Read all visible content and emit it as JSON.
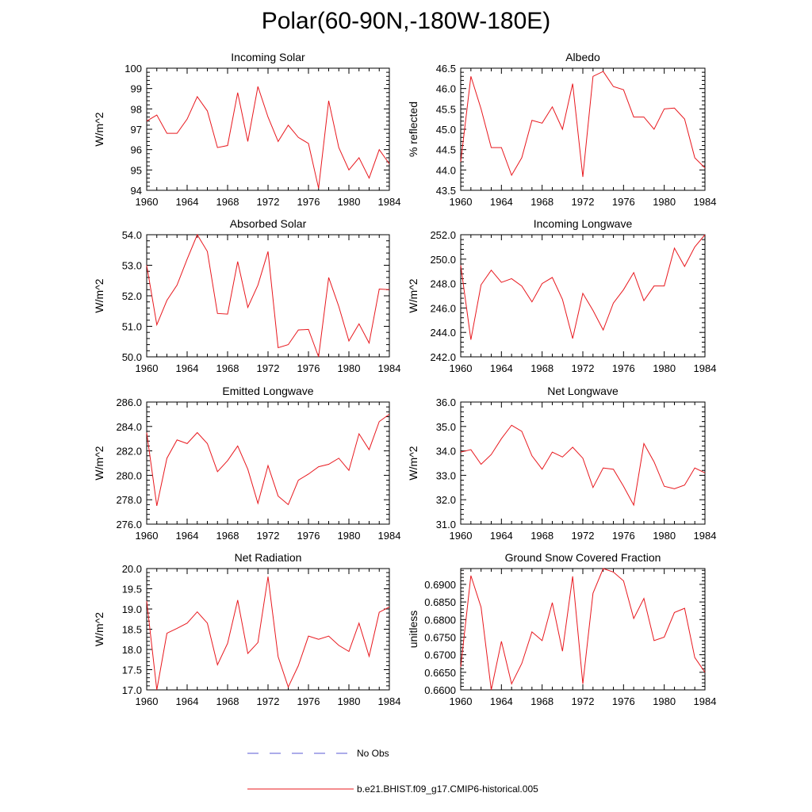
{
  "page": {
    "title": "Polar(60-90N,-180W-180E)"
  },
  "colors": {
    "model": "#e8181e",
    "obs": "#5a5ad6",
    "axis": "#000000"
  },
  "legend": {
    "obs_label": "No Obs",
    "model_label": "b.e21.BHIST.f09_g17.CMIP6-historical.005"
  },
  "chart_data": [
    {
      "type": "line",
      "title": "Incoming Solar",
      "ylabel": "W/m^2",
      "xlim": [
        1960,
        1984
      ],
      "ylim": [
        94,
        100
      ],
      "yticks": [
        94,
        95,
        96,
        97,
        98,
        99,
        100
      ],
      "ytick_decimals": 0,
      "xticks": [
        1960,
        1964,
        1968,
        1972,
        1976,
        1980,
        1984
      ],
      "x": [
        1960,
        1961,
        1962,
        1963,
        1964,
        1965,
        1966,
        1967,
        1968,
        1969,
        1970,
        1971,
        1972,
        1973,
        1974,
        1975,
        1976,
        1977,
        1978,
        1979,
        1980,
        1981,
        1982,
        1983,
        1984
      ],
      "series": [
        {
          "name": "b.e21.BHIST.f09_g17.CMIP6-historical.005",
          "values": [
            97.4,
            97.7,
            96.8,
            96.8,
            97.5,
            98.6,
            97.9,
            96.1,
            96.2,
            98.8,
            96.4,
            99.1,
            97.6,
            96.4,
            97.2,
            96.6,
            96.3,
            94.1,
            98.4,
            96.1,
            95.0,
            95.6,
            94.6,
            96.0,
            95.3
          ]
        }
      ]
    },
    {
      "type": "line",
      "title": "Albedo",
      "ylabel": "% reflected",
      "xlim": [
        1960,
        1984
      ],
      "ylim": [
        43.5,
        46.5
      ],
      "yticks": [
        43.5,
        44.0,
        44.5,
        45.0,
        45.5,
        46.0,
        46.5
      ],
      "ytick_decimals": 1,
      "xticks": [
        1960,
        1964,
        1968,
        1972,
        1976,
        1980,
        1984
      ],
      "x": [
        1960,
        1961,
        1962,
        1963,
        1964,
        1965,
        1966,
        1967,
        1968,
        1969,
        1970,
        1971,
        1972,
        1973,
        1974,
        1975,
        1976,
        1977,
        1978,
        1979,
        1980,
        1981,
        1982,
        1983,
        1984
      ],
      "series": [
        {
          "name": "b.e21.BHIST.f09_g17.CMIP6-historical.005",
          "values": [
            44.2,
            46.3,
            45.5,
            44.55,
            44.55,
            43.87,
            44.3,
            45.22,
            45.15,
            45.55,
            45.0,
            46.12,
            43.83,
            46.3,
            46.42,
            46.05,
            45.97,
            45.3,
            45.3,
            45.0,
            45.5,
            45.52,
            45.25,
            44.3,
            44.05
          ]
        }
      ]
    },
    {
      "type": "line",
      "title": "Absorbed Solar",
      "ylabel": "W/m^2",
      "xlim": [
        1960,
        1984
      ],
      "ylim": [
        50.0,
        54.0
      ],
      "yticks": [
        50.0,
        51.0,
        52.0,
        53.0,
        54.0
      ],
      "ytick_decimals": 1,
      "xticks": [
        1960,
        1964,
        1968,
        1972,
        1976,
        1980,
        1984
      ],
      "x": [
        1960,
        1961,
        1962,
        1963,
        1964,
        1965,
        1966,
        1967,
        1968,
        1969,
        1970,
        1971,
        1972,
        1973,
        1974,
        1975,
        1976,
        1977,
        1978,
        1979,
        1980,
        1981,
        1982,
        1983,
        1984
      ],
      "series": [
        {
          "name": "b.e21.BHIST.f09_g17.CMIP6-historical.005",
          "values": [
            53.0,
            51.05,
            51.85,
            52.35,
            53.2,
            54.0,
            53.45,
            51.42,
            51.4,
            53.12,
            51.62,
            52.35,
            53.45,
            50.3,
            50.4,
            50.88,
            50.9,
            50.0,
            52.6,
            51.65,
            50.52,
            51.08,
            50.45,
            52.22,
            52.2
          ]
        }
      ]
    },
    {
      "type": "line",
      "title": "Incoming Longwave",
      "ylabel": "W/m^2",
      "xlim": [
        1960,
        1984
      ],
      "ylim": [
        242.0,
        252.0
      ],
      "yticks": [
        242.0,
        244.0,
        246.0,
        248.0,
        250.0,
        252.0
      ],
      "ytick_decimals": 1,
      "xticks": [
        1960,
        1964,
        1968,
        1972,
        1976,
        1980,
        1984
      ],
      "x": [
        1960,
        1961,
        1962,
        1963,
        1964,
        1965,
        1966,
        1967,
        1968,
        1969,
        1970,
        1971,
        1972,
        1973,
        1974,
        1975,
        1976,
        1977,
        1978,
        1979,
        1980,
        1981,
        1982,
        1983,
        1984
      ],
      "series": [
        {
          "name": "b.e21.BHIST.f09_g17.CMIP6-historical.005",
          "values": [
            249.5,
            243.4,
            247.9,
            249.1,
            248.1,
            248.4,
            247.8,
            246.5,
            248.0,
            248.5,
            246.7,
            243.5,
            247.2,
            245.8,
            244.2,
            246.4,
            247.5,
            248.9,
            246.6,
            247.8,
            247.8,
            250.9,
            249.4,
            251.0,
            252.0
          ]
        }
      ]
    },
    {
      "type": "line",
      "title": "Emitted Longwave",
      "ylabel": "W/m^2",
      "xlim": [
        1960,
        1984
      ],
      "ylim": [
        276.0,
        286.0
      ],
      "yticks": [
        276.0,
        278.0,
        280.0,
        282.0,
        284.0,
        286.0
      ],
      "ytick_decimals": 1,
      "xticks": [
        1960,
        1964,
        1968,
        1972,
        1976,
        1980,
        1984
      ],
      "x": [
        1960,
        1961,
        1962,
        1963,
        1964,
        1965,
        1966,
        1967,
        1968,
        1969,
        1970,
        1971,
        1972,
        1973,
        1974,
        1975,
        1976,
        1977,
        1978,
        1979,
        1980,
        1981,
        1982,
        1983,
        1984
      ],
      "series": [
        {
          "name": "b.e21.BHIST.f09_g17.CMIP6-historical.005",
          "values": [
            283.5,
            277.5,
            281.4,
            282.9,
            282.6,
            283.5,
            282.6,
            280.3,
            281.2,
            282.4,
            280.5,
            277.7,
            280.8,
            278.3,
            277.6,
            279.6,
            280.1,
            280.7,
            280.9,
            281.4,
            280.4,
            283.4,
            282.1,
            284.4,
            285.0
          ]
        }
      ]
    },
    {
      "type": "line",
      "title": "Net Longwave",
      "ylabel": "W/m^2",
      "xlim": [
        1960,
        1984
      ],
      "ylim": [
        31.0,
        36.0
      ],
      "yticks": [
        31.0,
        32.0,
        33.0,
        34.0,
        35.0,
        36.0
      ],
      "ytick_decimals": 1,
      "xticks": [
        1960,
        1964,
        1968,
        1972,
        1976,
        1980,
        1984
      ],
      "x": [
        1960,
        1961,
        1962,
        1963,
        1964,
        1965,
        1966,
        1967,
        1968,
        1969,
        1970,
        1971,
        1972,
        1973,
        1974,
        1975,
        1976,
        1977,
        1978,
        1979,
        1980,
        1981,
        1982,
        1983,
        1984
      ],
      "series": [
        {
          "name": "b.e21.BHIST.f09_g17.CMIP6-historical.005",
          "values": [
            33.95,
            34.05,
            33.45,
            33.85,
            34.5,
            35.05,
            34.8,
            33.8,
            33.25,
            33.95,
            33.75,
            34.15,
            33.7,
            32.5,
            33.3,
            33.25,
            32.55,
            31.78,
            34.3,
            33.55,
            32.55,
            32.45,
            32.6,
            33.3,
            33.1
          ]
        }
      ]
    },
    {
      "type": "line",
      "title": "Net Radiation",
      "ylabel": "W/m^2",
      "xlim": [
        1960,
        1984
      ],
      "ylim": [
        17.0,
        20.0
      ],
      "yticks": [
        17.0,
        17.5,
        18.0,
        18.5,
        19.0,
        19.5,
        20.0
      ],
      "ytick_decimals": 1,
      "xticks": [
        1960,
        1964,
        1968,
        1972,
        1976,
        1980,
        1984
      ],
      "x": [
        1960,
        1961,
        1962,
        1963,
        1964,
        1965,
        1966,
        1967,
        1968,
        1969,
        1970,
        1971,
        1972,
        1973,
        1974,
        1975,
        1976,
        1977,
        1978,
        1979,
        1980,
        1981,
        1982,
        1983,
        1984
      ],
      "series": [
        {
          "name": "b.e21.BHIST.f09_g17.CMIP6-historical.005",
          "values": [
            19.2,
            17.0,
            18.4,
            18.52,
            18.65,
            18.93,
            18.65,
            17.62,
            18.15,
            19.22,
            17.9,
            18.17,
            19.8,
            17.82,
            17.07,
            17.6,
            18.33,
            18.25,
            18.33,
            18.1,
            17.95,
            18.65,
            17.83,
            18.92,
            19.05
          ]
        }
      ]
    },
    {
      "type": "line",
      "title": "Ground Snow Covered Fraction",
      "ylabel": "unitless",
      "xlim": [
        1960,
        1984
      ],
      "ylim": [
        0.66,
        0.6945
      ],
      "yticks": [
        0.66,
        0.665,
        0.67,
        0.675,
        0.68,
        0.685,
        0.69
      ],
      "ytick_decimals": 4,
      "xticks": [
        1960,
        1964,
        1968,
        1972,
        1976,
        1980,
        1984
      ],
      "x": [
        1960,
        1961,
        1962,
        1963,
        1964,
        1965,
        1966,
        1967,
        1968,
        1969,
        1970,
        1971,
        1972,
        1973,
        1974,
        1975,
        1976,
        1977,
        1978,
        1979,
        1980,
        1981,
        1982,
        1983,
        1984
      ],
      "series": [
        {
          "name": "b.e21.BHIST.f09_g17.CMIP6-historical.005",
          "values": [
            0.6665,
            0.6925,
            0.6835,
            0.66,
            0.6738,
            0.6617,
            0.6675,
            0.6765,
            0.674,
            0.6848,
            0.671,
            0.6923,
            0.6617,
            0.6875,
            0.6945,
            0.6935,
            0.691,
            0.6803,
            0.686,
            0.674,
            0.675,
            0.682,
            0.6832,
            0.6692,
            0.665
          ]
        }
      ]
    }
  ]
}
